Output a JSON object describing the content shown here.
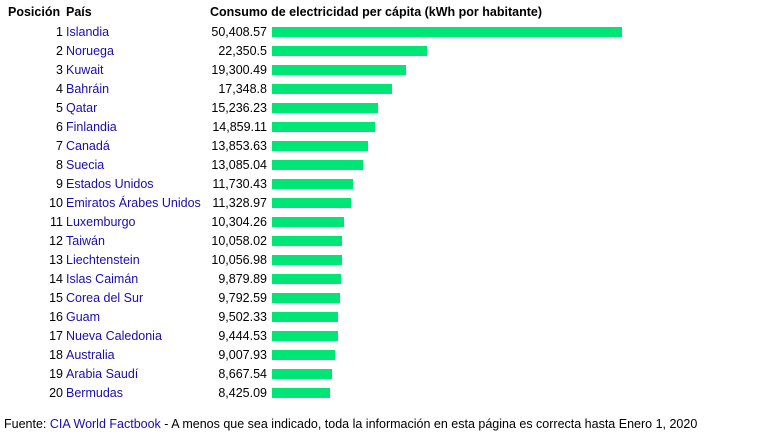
{
  "headers": {
    "rank": "Posición",
    "country": "País",
    "value": "Consumo de electricidad per cápita (kWh por habitante)"
  },
  "colors": {
    "bar": "#00e676",
    "link": "#1a0dab"
  },
  "chart_data": {
    "type": "bar",
    "orientation": "horizontal",
    "title": "Consumo de electricidad per cápita (kWh por habitante)",
    "rows": [
      {
        "rank": "1",
        "country": "Islandia",
        "value_label": "50,408.57",
        "value": 50408.57
      },
      {
        "rank": "2",
        "country": "Noruega",
        "value_label": "22,350.5",
        "value": 22350.5
      },
      {
        "rank": "3",
        "country": "Kuwait",
        "value_label": "19,300.49",
        "value": 19300.49
      },
      {
        "rank": "4",
        "country": "Bahráin",
        "value_label": "17,348.8",
        "value": 17348.8
      },
      {
        "rank": "5",
        "country": "Qatar",
        "value_label": "15,236.23",
        "value": 15236.23
      },
      {
        "rank": "6",
        "country": "Finlandia",
        "value_label": "14,859.11",
        "value": 14859.11
      },
      {
        "rank": "7",
        "country": "Canadá",
        "value_label": "13,853.63",
        "value": 13853.63
      },
      {
        "rank": "8",
        "country": "Suecia",
        "value_label": "13,085.04",
        "value": 13085.04
      },
      {
        "rank": "9",
        "country": "Estados Unidos",
        "value_label": "11,730.43",
        "value": 11730.43
      },
      {
        "rank": "10",
        "country": "Emiratos Árabes Unidos",
        "value_label": "11,328.97",
        "value": 11328.97
      },
      {
        "rank": "11",
        "country": "Luxemburgo",
        "value_label": "10,304.26",
        "value": 10304.26
      },
      {
        "rank": "12",
        "country": "Taiwán",
        "value_label": "10,058.02",
        "value": 10058.02
      },
      {
        "rank": "13",
        "country": "Liechtenstein",
        "value_label": "10,056.98",
        "value": 10056.98
      },
      {
        "rank": "14",
        "country": "Islas Caimán",
        "value_label": "9,879.89",
        "value": 9879.89
      },
      {
        "rank": "15",
        "country": "Corea del Sur",
        "value_label": "9,792.59",
        "value": 9792.59
      },
      {
        "rank": "16",
        "country": "Guam",
        "value_label": "9,502.33",
        "value": 9502.33
      },
      {
        "rank": "17",
        "country": "Nueva Caledonia",
        "value_label": "9,444.53",
        "value": 9444.53
      },
      {
        "rank": "18",
        "country": "Australia",
        "value_label": "9,007.93",
        "value": 9007.93
      },
      {
        "rank": "19",
        "country": "Arabia Saudí",
        "value_label": "8,667.54",
        "value": 8667.54
      },
      {
        "rank": "20",
        "country": "Bermudas",
        "value_label": "8,425.09",
        "value": 8425.09
      }
    ]
  },
  "footer": {
    "prefix": "Fuente: ",
    "link": "CIA World Factbook",
    "suffix": " - A menos que sea indicado, toda la información en esta página es correcta hasta Enero 1, 2020"
  }
}
